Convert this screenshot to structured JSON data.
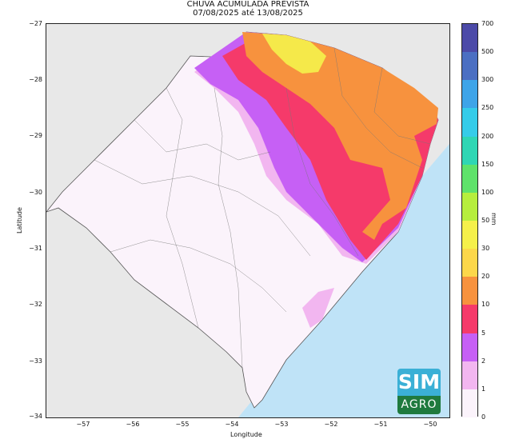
{
  "title": {
    "line1": "CHUVA ACUMULADA PREVISTA",
    "line2": "07/08/2025 até 13/08/2025"
  },
  "axes": {
    "xlabel": "Longitude",
    "ylabel": "Latitude",
    "xticks": [
      "−57",
      "−56",
      "−55",
      "−54",
      "−53",
      "−52",
      "−51",
      "−50"
    ],
    "yticks": [
      "−27",
      "−28",
      "−29",
      "−30",
      "−31",
      "−32",
      "−33",
      "−34"
    ]
  },
  "colorbar": {
    "unit": "mm",
    "levels": [
      {
        "label": "0",
        "color": "#ffffff"
      },
      {
        "label": "1",
        "color": "#fbf3fb"
      },
      {
        "label": "2",
        "color": "#f2b6f0"
      },
      {
        "label": "5",
        "color": "#c660f5"
      },
      {
        "label": "10",
        "color": "#f53a6a"
      },
      {
        "label": "20",
        "color": "#f7923e"
      },
      {
        "label": "30",
        "color": "#fcd74a"
      },
      {
        "label": "50",
        "color": "#f5f04a"
      },
      {
        "label": "100",
        "color": "#b6ee3d"
      },
      {
        "label": "150",
        "color": "#5fe26b"
      },
      {
        "label": "200",
        "color": "#2fd6b4"
      },
      {
        "label": "250",
        "color": "#35cce9"
      },
      {
        "label": "300",
        "color": "#3ea4e8"
      },
      {
        "label": "500",
        "color": "#4b6fc2"
      },
      {
        "label": "700",
        "color": "#4c4aa8"
      }
    ]
  },
  "logo": {
    "top": "SIM",
    "bottom": "AGRO"
  },
  "map": {
    "region": "Rio Grande do Sul",
    "colors": {
      "land_outside": "#dcdcdc",
      "ocean": "#bfe3f7",
      "state_base": "#fbf3fb",
      "borders": "#666666"
    }
  }
}
